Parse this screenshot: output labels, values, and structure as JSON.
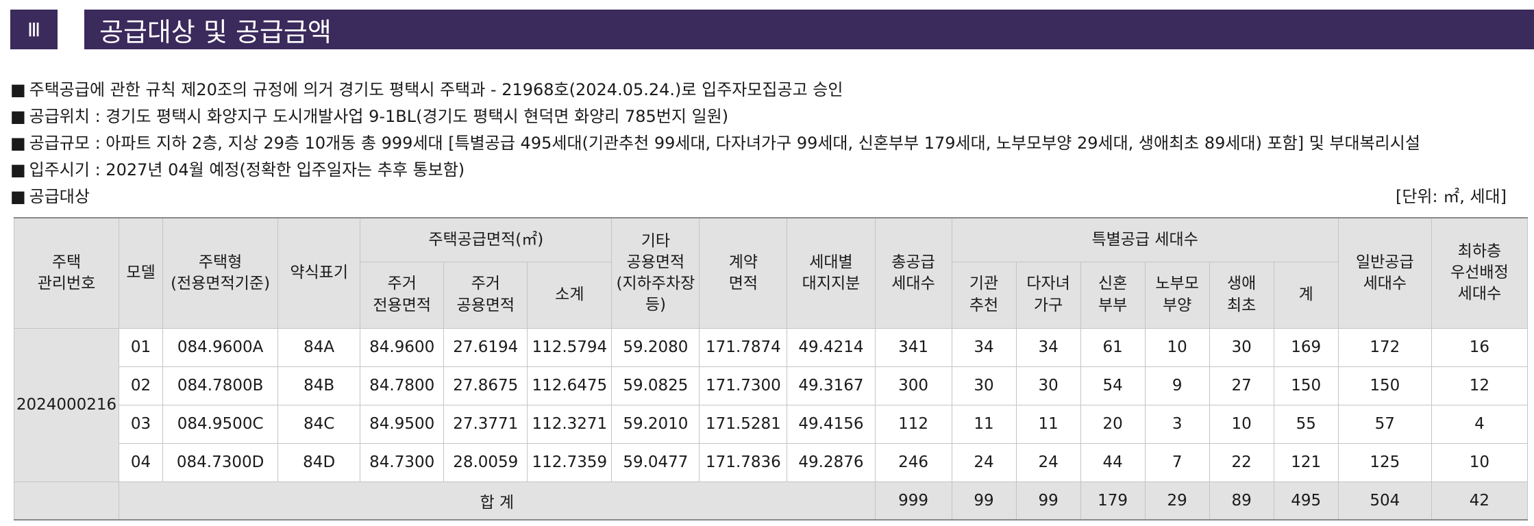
{
  "header": {
    "section_number": "Ⅲ",
    "title": "공급대상 및 공급금액"
  },
  "bullets": [
    "주택공급에 관한 규칙 제20조의 규정에 의거 경기도 평택시 주택과 - 21968호(2024.05.24.)로 입주자모집공고 승인",
    "공급위치 : 경기도 평택시 화양지구 도시개발사업 9-1BL(경기도 평택시 현덕면 화양리 785번지 일원)",
    "공급규모 : 아파트 지하 2층, 지상 29층 10개동 총 999세대 [특별공급 495세대(기관추천 99세대, 다자녀가구 99세대, 신혼부부 179세대, 노부모부양 29세대, 생애최초 89세대) 포함] 및 부대복리시설",
    "입주시기 : 2027년 04월 예정(정확한 입주일자는 추후 통보함)",
    "공급대상"
  ],
  "bullet_marker": "■",
  "unit_note": "[단위: ㎡, 세대]",
  "table": {
    "headers": {
      "house_id": "주택\n관리번호",
      "model": "모델",
      "house_type": "주택형\n(전용면적기준)",
      "short_code": "약식표기",
      "supply_area_group": "주택공급면적(㎡)",
      "exclusive_area": "주거\n전용면적",
      "common_area": "주거\n공용면적",
      "subtotal": "소계",
      "other_common": "기타\n공용면적\n(지하주차장\n등)",
      "contract_area": "계약\n면적",
      "land_share": "세대별\n대지지분",
      "total_supply": "총공급\n세대수",
      "special_group": "특별공급 세대수",
      "institution": "기관\n추천",
      "multi_child": "다자녀\n가구",
      "newlywed": "신혼\n부부",
      "elderly": "노부모\n부양",
      "first_time": "생애\n최초",
      "special_sum": "계",
      "general_supply": "일반공급\n세대수",
      "lowest_floor": "최하층\n우선배정\n세대수"
    },
    "house_id": "2024000216",
    "rows": [
      {
        "model": "01",
        "type": "084.9600A",
        "code": "84A",
        "excl": "84.9600",
        "comm": "27.6194",
        "sub": "112.5794",
        "other": "59.2080",
        "contract": "171.7874",
        "land": "49.4214",
        "total": "341",
        "inst": "34",
        "multi": "34",
        "newly": "61",
        "elder": "10",
        "first": "30",
        "spsum": "169",
        "general": "172",
        "lowest": "16"
      },
      {
        "model": "02",
        "type": "084.7800B",
        "code": "84B",
        "excl": "84.7800",
        "comm": "27.8675",
        "sub": "112.6475",
        "other": "59.0825",
        "contract": "171.7300",
        "land": "49.3167",
        "total": "300",
        "inst": "30",
        "multi": "30",
        "newly": "54",
        "elder": "9",
        "first": "27",
        "spsum": "150",
        "general": "150",
        "lowest": "12"
      },
      {
        "model": "03",
        "type": "084.9500C",
        "code": "84C",
        "excl": "84.9500",
        "comm": "27.3771",
        "sub": "112.3271",
        "other": "59.2010",
        "contract": "171.5281",
        "land": "49.4156",
        "total": "112",
        "inst": "11",
        "multi": "11",
        "newly": "20",
        "elder": "3",
        "first": "10",
        "spsum": "55",
        "general": "57",
        "lowest": "4"
      },
      {
        "model": "04",
        "type": "084.7300D",
        "code": "84D",
        "excl": "84.7300",
        "comm": "28.0059",
        "sub": "112.7359",
        "other": "59.0477",
        "contract": "171.7836",
        "land": "49.2876",
        "total": "246",
        "inst": "24",
        "multi": "24",
        "newly": "44",
        "elder": "7",
        "first": "22",
        "spsum": "121",
        "general": "125",
        "lowest": "10"
      }
    ],
    "total_row": {
      "label": "합 계",
      "total": "999",
      "inst": "99",
      "multi": "99",
      "newly": "179",
      "elder": "29",
      "first": "89",
      "spsum": "495",
      "general": "504",
      "lowest": "42"
    }
  },
  "colors": {
    "header_bg": "#3b2a5c",
    "table_header_bg": "#e2e2e2",
    "border": "#c4c4c4"
  }
}
